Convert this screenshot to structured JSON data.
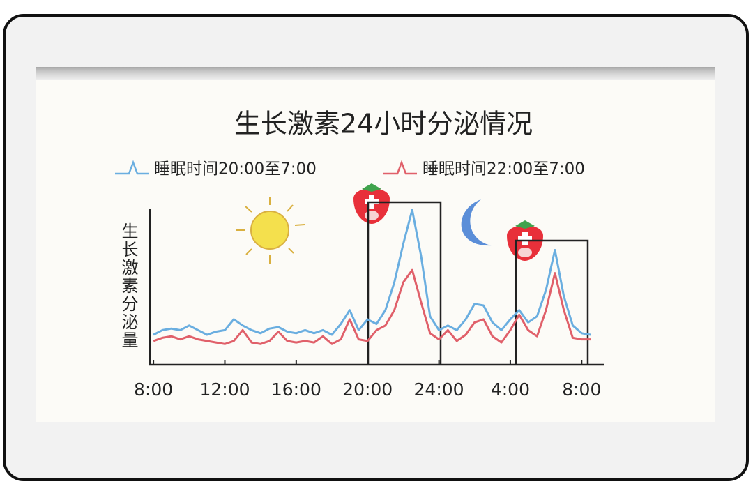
{
  "chart_data": {
    "type": "line",
    "title": "生长激素24小时分泌情况",
    "y_label": "生长激素分泌量",
    "x": [
      8,
      8.5,
      9,
      9.5,
      10,
      10.5,
      11,
      11.5,
      12,
      12.5,
      13,
      13.5,
      14,
      14.5,
      15,
      15.5,
      16,
      16.5,
      17,
      17.5,
      18,
      18.5,
      19,
      19.5,
      20,
      20.5,
      21,
      21.5,
      22,
      22.5,
      23,
      23.5,
      24,
      24.5,
      25,
      25.5,
      26,
      26.5,
      27,
      27.5,
      28,
      28.5,
      29,
      29.5,
      30,
      30.5,
      31,
      31.5,
      32,
      32.5
    ],
    "xlim": [
      7.8,
      33.2
    ],
    "xticks": [
      {
        "value": 8,
        "label": "8:00"
      },
      {
        "value": 12,
        "label": "12:00"
      },
      {
        "value": 16,
        "label": "16:00"
      },
      {
        "value": 20,
        "label": "20:00"
      },
      {
        "value": 24,
        "label": "24:00"
      },
      {
        "value": 28,
        "label": "4:00"
      },
      {
        "value": 32,
        "label": "8:00"
      }
    ],
    "ylim": [
      0,
      105
    ],
    "series": [
      {
        "name": "睡眠时间20:00至7:00",
        "color": "#6aaee0",
        "values": [
          19,
          22,
          23,
          22,
          25,
          22,
          19,
          21,
          22,
          29,
          25,
          22,
          20,
          23,
          24,
          21,
          20,
          22,
          20,
          22,
          19,
          26,
          35,
          22,
          29,
          26,
          35,
          53,
          78,
          100,
          70,
          31,
          22,
          25,
          22,
          29,
          39,
          38,
          27,
          22,
          29,
          35,
          27,
          31,
          48,
          74,
          44,
          25,
          20,
          19
        ]
      },
      {
        "name": "睡眠时间22:00至7:00",
        "color": "#e0606a",
        "values": [
          15,
          17,
          18,
          16,
          18,
          16,
          15,
          14,
          13,
          15,
          22,
          14,
          13,
          15,
          21,
          15,
          14,
          15,
          14,
          18,
          13,
          16,
          29,
          16,
          15,
          22,
          25,
          35,
          53,
          61,
          40,
          20,
          16,
          22,
          15,
          19,
          27,
          29,
          18,
          14,
          22,
          32,
          22,
          18,
          35,
          59,
          35,
          17,
          16,
          16
        ]
      }
    ]
  }
}
